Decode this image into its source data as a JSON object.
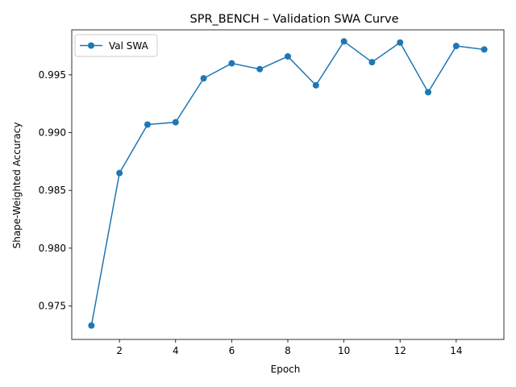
{
  "chart_data": {
    "type": "line",
    "title": "SPR_BENCH – Validation SWA Curve",
    "xlabel": "Epoch",
    "ylabel": "Shape-Weighted Accuracy",
    "xlim": [
      0.3,
      15.7
    ],
    "ylim": [
      0.9721,
      0.9989
    ],
    "xticks": [
      2,
      4,
      6,
      8,
      10,
      12,
      14
    ],
    "yticks": [
      0.975,
      0.98,
      0.985,
      0.99,
      0.995
    ],
    "ytick_format": 3,
    "grid": false,
    "legend": {
      "placement": "top-left"
    },
    "series": [
      {
        "name": "Val SWA",
        "color": "#1f77b4",
        "marker": "circle",
        "x": [
          1,
          2,
          3,
          4,
          5,
          6,
          7,
          8,
          9,
          10,
          11,
          12,
          13,
          14,
          15
        ],
        "y": [
          0.9733,
          0.9865,
          0.9907,
          0.9909,
          0.9947,
          0.996,
          0.9955,
          0.9966,
          0.9941,
          0.9979,
          0.9961,
          0.9978,
          0.9935,
          0.9975,
          0.9972
        ]
      }
    ]
  }
}
